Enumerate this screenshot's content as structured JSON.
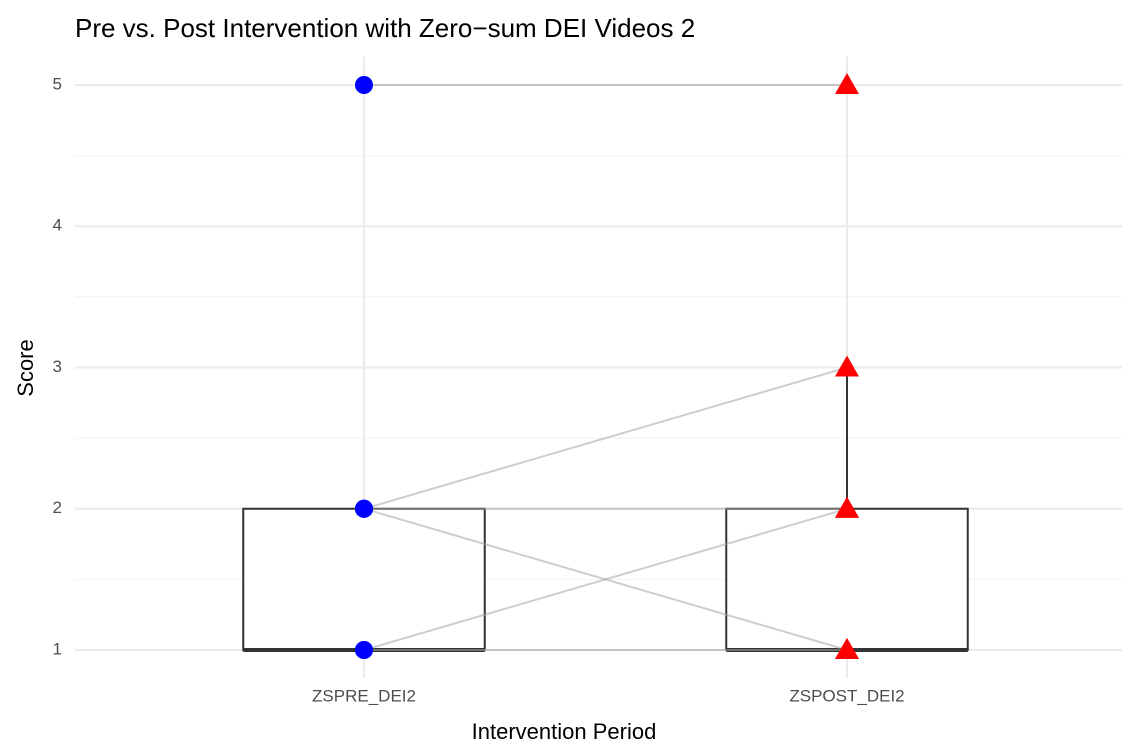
{
  "chart_data": {
    "type": "box",
    "title": "Pre vs. Post Intervention with Zero−sum DEI Videos 2",
    "x_label": "Intervention Period",
    "y_label": "Score",
    "categories": [
      "ZSPRE_DEI2",
      "ZSPOST_DEI2"
    ],
    "boxes": [
      {
        "min": 1,
        "q1": 1,
        "median": 1,
        "q3": 2,
        "max": 2
      },
      {
        "min": 1,
        "q1": 1,
        "median": 1,
        "q3": 2,
        "max": 3
      }
    ],
    "pairs": {
      "pre": [
        5,
        2,
        2,
        2,
        1,
        1
      ],
      "post": [
        5,
        3,
        2,
        1,
        2,
        1
      ]
    },
    "pre_color": "#0000ff",
    "post_color": "#ff0000",
    "line_color": "#a6a6a6",
    "box_color": "#333333",
    "ylim": [
      0.8,
      5.2
    ],
    "yticks": [
      1,
      2,
      3,
      4,
      5
    ],
    "minor_yticks": [
      1.5,
      2.5,
      3.5,
      4.5
    ],
    "grid": true
  }
}
